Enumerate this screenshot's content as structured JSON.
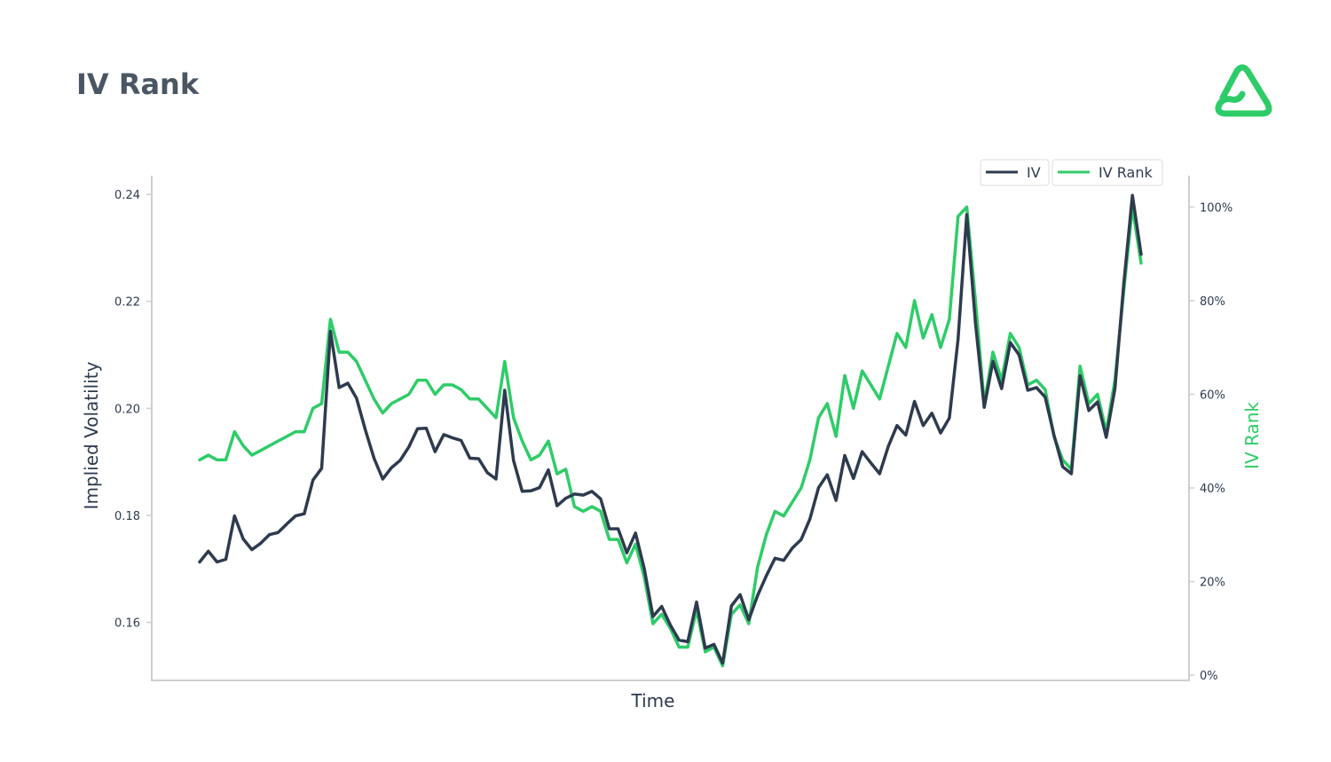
{
  "page": {
    "title": "IV Rank",
    "logo_icon": "robinhood-style-logo-icon"
  },
  "colors": {
    "iv": "#2e3b4e",
    "iv_rank": "#2ecc68",
    "axis": "#cfcfcf",
    "title": "#4a5663"
  },
  "chart_data": {
    "type": "line",
    "title": "IV Rank",
    "xlabel": "Time",
    "ylabel": "Implied Volatility",
    "y2label": "IV Rank",
    "ylim": [
      0.149,
      0.2435
    ],
    "y2lim": [
      -0.013,
      1.067
    ],
    "yticks": [
      "0.24",
      "0.22",
      "0.20",
      "0.18",
      "0.16"
    ],
    "yticks_values": [
      0.24,
      0.22,
      0.2,
      0.18,
      0.16
    ],
    "y2ticks": [
      "100%",
      "80%",
      "60%",
      "40%",
      "20%",
      "0%"
    ],
    "y2ticks_values": [
      1.0,
      0.8,
      0.6,
      0.4,
      0.2,
      0.0
    ],
    "grid": false,
    "legend": {
      "position": "top-right",
      "entries": [
        "IV",
        "IV Rank"
      ]
    },
    "series": [
      {
        "name": "IV",
        "axis": "left",
        "values": [
          0.1713,
          0.1733,
          0.1713,
          0.1718,
          0.1799,
          0.1756,
          0.1736,
          0.1748,
          0.1764,
          0.1768,
          0.1784,
          0.1799,
          0.1803,
          0.1866,
          0.1888,
          0.2144,
          0.2039,
          0.2047,
          0.2019,
          0.196,
          0.1907,
          0.1868,
          0.1889,
          0.1903,
          0.1928,
          0.1962,
          0.1963,
          0.1919,
          0.1951,
          0.1945,
          0.194,
          0.1907,
          0.1906,
          0.188,
          0.1868,
          0.2034,
          0.1903,
          0.1845,
          0.1846,
          0.1852,
          0.1885,
          0.1818,
          0.1832,
          0.184,
          0.1838,
          0.1845,
          0.1831,
          0.1775,
          0.1775,
          0.173,
          0.1767,
          0.1701,
          0.1611,
          0.163,
          0.1595,
          0.1567,
          0.1564,
          0.1638,
          0.1552,
          0.1559,
          0.1524,
          0.1631,
          0.1652,
          0.1605,
          0.165,
          0.1687,
          0.172,
          0.1716,
          0.1739,
          0.1755,
          0.1793,
          0.1852,
          0.1876,
          0.1828,
          0.1912,
          0.1869,
          0.1919,
          0.1898,
          0.1878,
          0.1929,
          0.1968,
          0.195,
          0.2013,
          0.1968,
          0.1991,
          0.1954,
          0.1982,
          0.2129,
          0.2362,
          0.216,
          0.2002,
          0.2088,
          0.2037,
          0.2123,
          0.21,
          0.2034,
          0.2039,
          0.2021,
          0.195,
          0.1891,
          0.1878,
          0.2061,
          0.1996,
          0.2012,
          0.1946,
          0.2037,
          0.2232,
          0.2398,
          0.2288
        ]
      },
      {
        "name": "IV Rank",
        "axis": "right",
        "values": [
          0.46,
          0.47,
          0.46,
          0.46,
          0.52,
          0.49,
          0.47,
          0.48,
          0.49,
          0.5,
          0.51,
          0.52,
          0.52,
          0.57,
          0.58,
          0.76,
          0.69,
          0.69,
          0.67,
          0.63,
          0.59,
          0.56,
          0.58,
          0.59,
          0.6,
          0.63,
          0.63,
          0.6,
          0.62,
          0.62,
          0.61,
          0.59,
          0.59,
          0.57,
          0.55,
          0.67,
          0.55,
          0.5,
          0.46,
          0.47,
          0.5,
          0.43,
          0.44,
          0.36,
          0.35,
          0.36,
          0.35,
          0.29,
          0.29,
          0.24,
          0.28,
          0.21,
          0.11,
          0.13,
          0.1,
          0.06,
          0.06,
          0.14,
          0.05,
          0.06,
          0.02,
          0.13,
          0.15,
          0.11,
          0.23,
          0.3,
          0.35,
          0.34,
          0.37,
          0.4,
          0.46,
          0.55,
          0.58,
          0.51,
          0.64,
          0.57,
          0.65,
          0.62,
          0.59,
          0.66,
          0.73,
          0.7,
          0.8,
          0.72,
          0.77,
          0.7,
          0.76,
          0.98,
          1.0,
          0.8,
          0.58,
          0.69,
          0.63,
          0.73,
          0.7,
          0.62,
          0.63,
          0.61,
          0.51,
          0.46,
          0.44,
          0.66,
          0.58,
          0.6,
          0.52,
          0.63,
          0.82,
          1.0,
          0.88
        ]
      }
    ]
  }
}
